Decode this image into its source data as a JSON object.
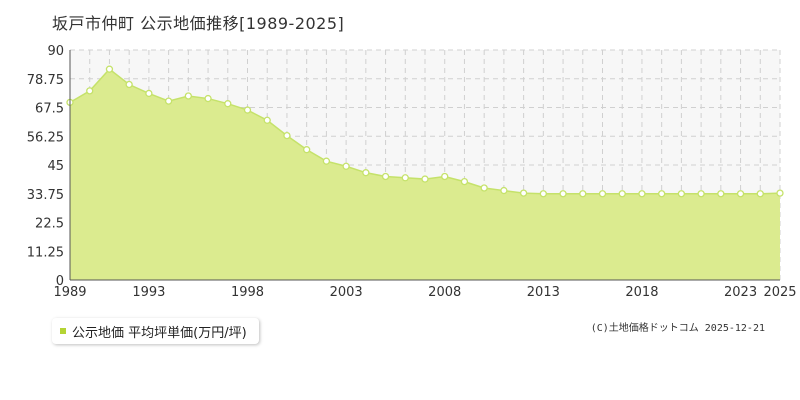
{
  "page_title": "坂戸市仲町 公示地価推移[1989-2025]",
  "legend": {
    "label": "公示地価 平均坪単価(万円/坪)"
  },
  "copyright": "(C)土地価格ドットコム 2025-12-21",
  "colors": {
    "area_fill": "#dbeb8f",
    "line": "#c5e26a",
    "marker_fill": "#ffffff",
    "marker_stroke": "#c5e26a",
    "grid": "#d0d0d0",
    "plot_bg": "#f7f7f7",
    "legend_swatch": "#b4d434"
  },
  "chart_data": {
    "type": "area",
    "x": [
      1989,
      1990,
      1991,
      1992,
      1993,
      1994,
      1995,
      1996,
      1997,
      1998,
      1999,
      2000,
      2001,
      2002,
      2003,
      2004,
      2005,
      2006,
      2007,
      2008,
      2009,
      2010,
      2011,
      2012,
      2013,
      2014,
      2015,
      2016,
      2017,
      2018,
      2019,
      2020,
      2021,
      2022,
      2023,
      2024,
      2025
    ],
    "series": [
      {
        "name": "公示地価 平均坪単価(万円/坪)",
        "values": [
          69.5,
          74,
          82.5,
          76.5,
          73,
          70,
          72,
          71,
          69,
          66.5,
          62.5,
          56.5,
          51,
          46.5,
          44.5,
          42,
          40.5,
          40,
          39.5,
          40.5,
          38.5,
          36,
          35,
          34,
          33.75,
          33.75,
          33.75,
          33.75,
          33.75,
          33.75,
          33.75,
          33.75,
          33.75,
          33.75,
          33.75,
          33.75,
          34
        ]
      }
    ],
    "xlim": [
      1989,
      2025
    ],
    "ylim": [
      0,
      90
    ],
    "y_ticks": [
      "0",
      "11.25",
      "22.5",
      "33.75",
      "45",
      "56.25",
      "67.5",
      "78.75",
      "90"
    ],
    "x_ticks": [
      "1989",
      "1993",
      "1998",
      "2003",
      "2008",
      "2013",
      "2018",
      "2023",
      "2025"
    ],
    "grid": true,
    "legend_position": "bottom-left"
  }
}
